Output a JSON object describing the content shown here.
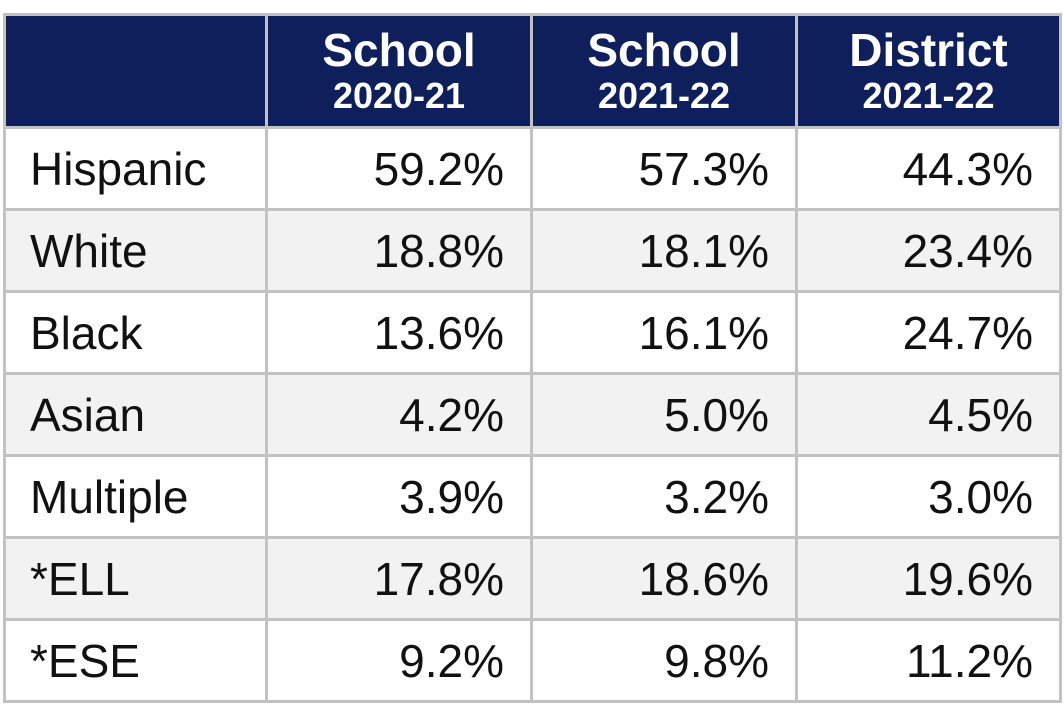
{
  "table": {
    "columns": [
      {
        "line1": "School",
        "line2": "2020-21"
      },
      {
        "line1": "School",
        "line2": "2021-22"
      },
      {
        "line1": "District",
        "line2": "2021-22"
      }
    ],
    "rows": [
      [
        "Hispanic",
        "59.2%",
        "57.3%",
        "44.3%"
      ],
      [
        "White",
        "18.8%",
        "18.1%",
        "23.4%"
      ],
      [
        "Black",
        "13.6%",
        "16.1%",
        "24.7%"
      ],
      [
        "Asian",
        "4.2%",
        "5.0%",
        "4.5%"
      ],
      [
        "Multiple",
        "3.9%",
        "3.2%",
        "3.0%"
      ],
      [
        "*ELL",
        "17.8%",
        "18.6%",
        "19.6%"
      ],
      [
        "*ESE",
        "9.2%",
        "9.8%",
        "11.2%"
      ]
    ]
  }
}
